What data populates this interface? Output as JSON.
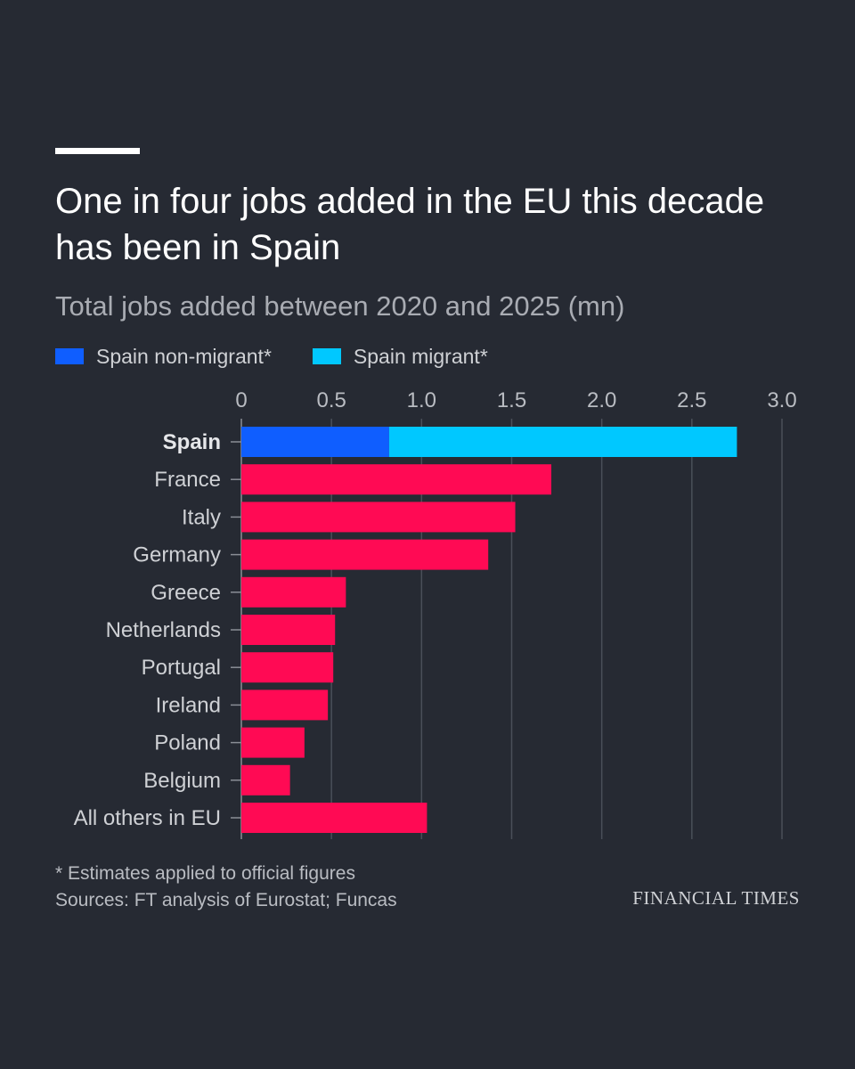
{
  "header": {
    "title": "One in four jobs added in the EU this decade has been in Spain",
    "subtitle": "Total jobs added between 2020 and 2025 (mn)"
  },
  "legend": {
    "items": [
      {
        "label": "Spain non-migrant*",
        "color": "#0f5eff"
      },
      {
        "label": "Spain migrant*",
        "color": "#00c8ff"
      }
    ]
  },
  "footer": {
    "note": "* Estimates applied to official figures",
    "sources": "Sources: FT analysis of Eurostat; Funcas",
    "brand": "FINANCIAL TIMES"
  },
  "colors": {
    "background": "#262a33",
    "bar": "#ff0a54",
    "gridline": "#4a4f59",
    "tick_label": "#b9bcc2",
    "category_label": "#cfd1d5"
  },
  "chart_data": {
    "type": "bar",
    "orientation": "horizontal",
    "stacked": true,
    "title": "One in four jobs added in the EU this decade has been in Spain",
    "subtitle": "Total jobs added between 2020 and 2025 (mn)",
    "xlim": [
      0,
      3.0
    ],
    "xticks": [
      "0",
      "0.5",
      "1.0",
      "1.5",
      "2.0",
      "2.5",
      "3.0"
    ],
    "grid": true,
    "legend_position": "top-left",
    "categories": [
      "Spain",
      "France",
      "Italy",
      "Germany",
      "Greece",
      "Netherlands",
      "Portugal",
      "Ireland",
      "Poland",
      "Belgium",
      "All others in EU"
    ],
    "highlight_category": "Spain",
    "series": [
      {
        "name": "Spain non-migrant*",
        "color": "#0f5eff",
        "values": [
          0.82,
          null,
          null,
          null,
          null,
          null,
          null,
          null,
          null,
          null,
          null
        ]
      },
      {
        "name": "Spain migrant*",
        "color": "#00c8ff",
        "values": [
          1.93,
          null,
          null,
          null,
          null,
          null,
          null,
          null,
          null,
          null,
          null
        ]
      },
      {
        "color": "#ff0a54",
        "values": [
          null,
          1.72,
          1.52,
          1.37,
          0.58,
          0.52,
          0.51,
          0.48,
          0.35,
          0.27,
          1.03
        ]
      }
    ]
  }
}
